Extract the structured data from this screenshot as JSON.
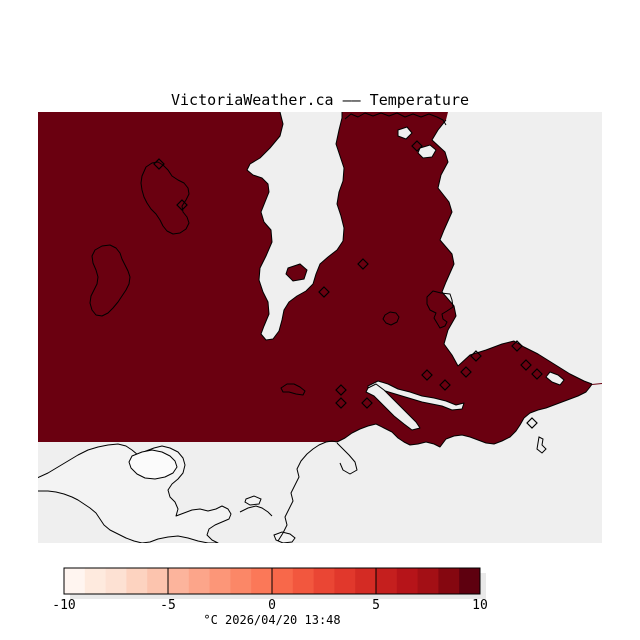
{
  "title": "VictoriaWeather.ca  ——  Temperature",
  "colors": {
    "canvas": "#ffffff",
    "sea": "#efefef",
    "temperature_field": "#6a0010",
    "coastline": "#000000",
    "land_no_data": "#f3f3f3",
    "inland_water_no_data": "#fbfbfb",
    "colorbar_shadow": "#e9e9e9"
  },
  "colorbar": {
    "orientation_note": "horizontal scale bar",
    "min": -10,
    "max": 10,
    "tick_labels": [
      "-10",
      "-5",
      "0",
      "5",
      "10"
    ],
    "tick_values": [
      -10,
      -5,
      0,
      5,
      10
    ],
    "unit_and_timestamp": "°C  2026/04/20 13:48",
    "segment_count": 20,
    "segment_colors": [
      "#fff5f0",
      "#feeade",
      "#fde1d3",
      "#fdd3c0",
      "#fcc4ae",
      "#fcb49c",
      "#fca58a",
      "#fc9678",
      "#fb8767",
      "#fb7858",
      "#f8684a",
      "#f2573e",
      "#ea4634",
      "#e1382c",
      "#d42b24",
      "#c51f1e",
      "#b61419",
      "#a30f15",
      "#850710",
      "#5e000f"
    ]
  },
  "chart_data": {
    "type": "heatmap",
    "title": "VictoriaWeather.ca  ——  Temperature",
    "scale_unit": "°C",
    "timestamp_label": "2026/04/20 13:48",
    "scale_range": [
      -10,
      10
    ],
    "scale_ticks": [
      -10,
      -5,
      0,
      5,
      10
    ],
    "field_fill_color": "#6a0010",
    "field_note": "entire data region rendered at the dark-red top end of the scale"
  }
}
